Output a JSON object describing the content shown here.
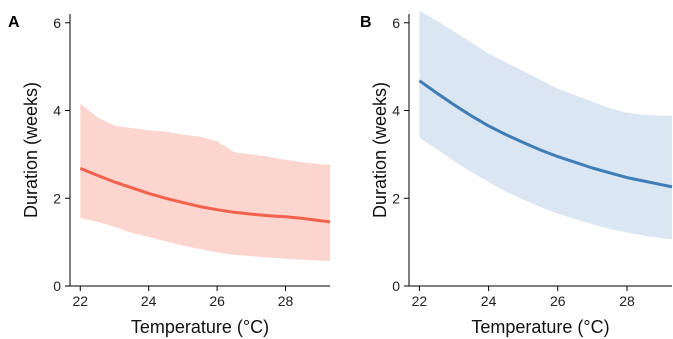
{
  "chart_data": [
    {
      "type": "line",
      "panel_label": "A",
      "xlabel": "Temperature (°C)",
      "ylabel": "Duration (weeks)",
      "xlim": [
        21.7,
        29.3
      ],
      "ylim": [
        0,
        6.2
      ],
      "x_ticks": [
        22,
        24,
        26,
        28
      ],
      "y_ticks": [
        0,
        2,
        4,
        6
      ],
      "grid": false,
      "series": [
        {
          "color": "#f4614b",
          "band_color": "#fdd5cf",
          "x": [
            22.0,
            22.5,
            23.0,
            23.5,
            24.0,
            24.5,
            25.0,
            25.5,
            26.0,
            26.5,
            27.0,
            27.5,
            28.0,
            28.5,
            29.0,
            29.3
          ],
          "y": [
            2.68,
            2.52,
            2.37,
            2.24,
            2.11,
            2.0,
            1.9,
            1.81,
            1.74,
            1.68,
            1.64,
            1.6,
            1.58,
            1.54,
            1.49,
            1.46
          ],
          "lower": [
            1.55,
            1.46,
            1.35,
            1.21,
            1.12,
            1.02,
            0.92,
            0.84,
            0.77,
            0.71,
            0.68,
            0.65,
            0.62,
            0.6,
            0.58,
            0.57
          ],
          "upper": [
            4.15,
            3.85,
            3.65,
            3.6,
            3.55,
            3.52,
            3.45,
            3.4,
            3.3,
            3.05,
            3.0,
            2.95,
            2.88,
            2.82,
            2.78,
            2.76
          ]
        }
      ]
    },
    {
      "type": "line",
      "panel_label": "B",
      "xlabel": "Temperature (°C)",
      "ylabel": "Duration (weeks)",
      "xlim": [
        21.7,
        29.3
      ],
      "ylim": [
        0,
        6.2
      ],
      "x_ticks": [
        22,
        24,
        26,
        28
      ],
      "y_ticks": [
        0,
        2,
        4,
        6
      ],
      "grid": false,
      "series": [
        {
          "color": "#3f7db6",
          "band_color": "#dae6f1",
          "x": [
            22.0,
            22.5,
            23.0,
            23.5,
            24.0,
            24.5,
            25.0,
            25.5,
            26.0,
            26.5,
            27.0,
            27.5,
            28.0,
            28.5,
            29.0,
            29.3
          ],
          "y": [
            4.68,
            4.4,
            4.13,
            3.88,
            3.65,
            3.45,
            3.27,
            3.1,
            2.95,
            2.82,
            2.69,
            2.58,
            2.47,
            2.39,
            2.31,
            2.26
          ],
          "lower": [
            3.38,
            3.12,
            2.85,
            2.6,
            2.37,
            2.15,
            1.97,
            1.8,
            1.65,
            1.52,
            1.41,
            1.3,
            1.22,
            1.15,
            1.09,
            1.07
          ],
          "upper": [
            6.28,
            6.05,
            5.8,
            5.55,
            5.3,
            5.1,
            4.9,
            4.7,
            4.5,
            4.35,
            4.2,
            4.05,
            3.95,
            3.9,
            3.88,
            3.88
          ]
        }
      ]
    }
  ]
}
